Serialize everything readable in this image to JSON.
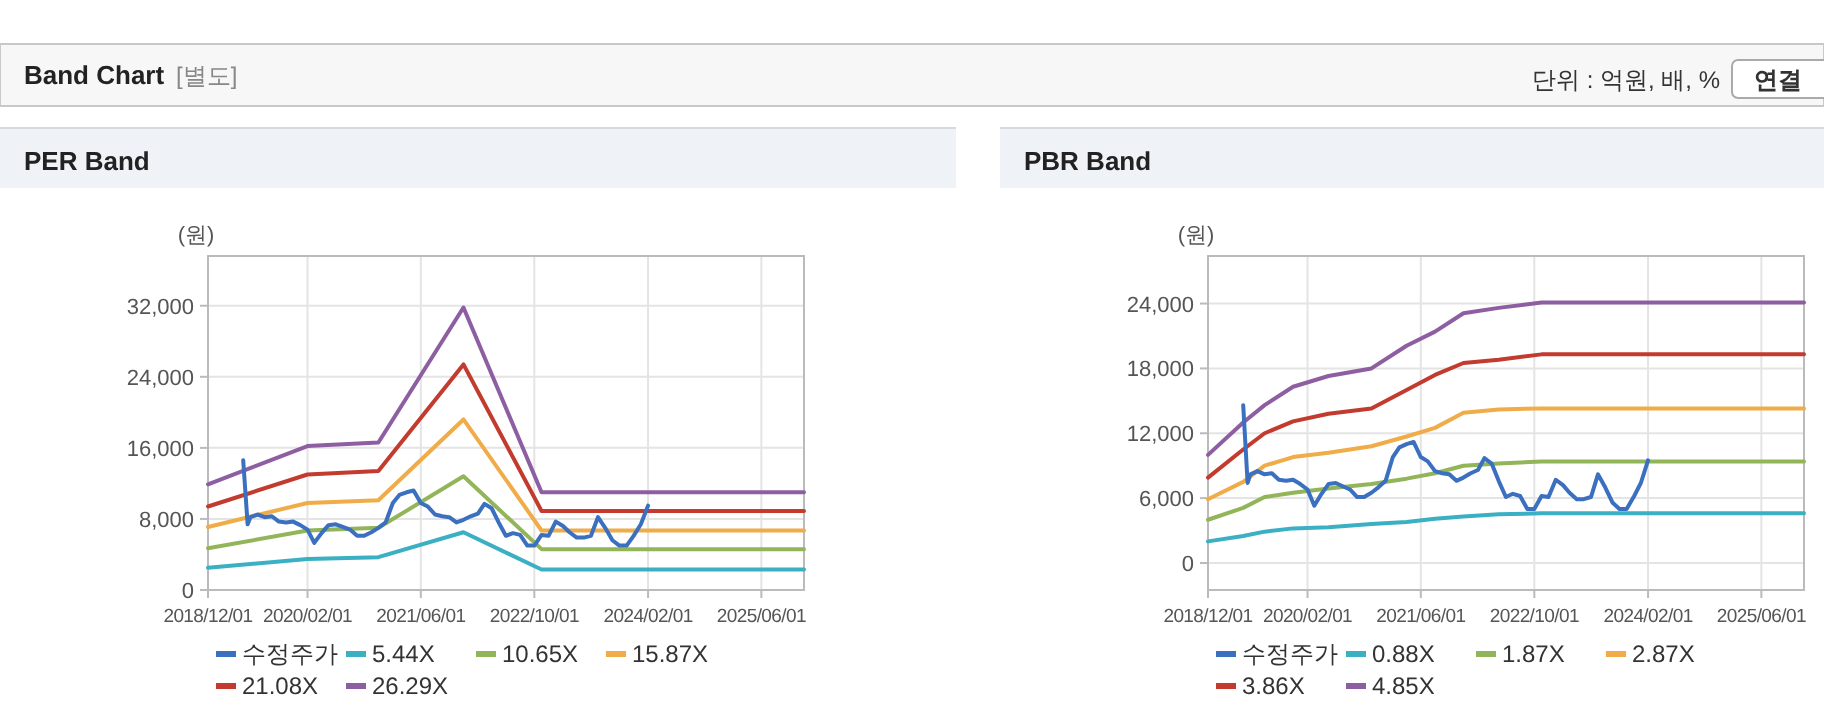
{
  "chart_data": [
    {
      "type": "other",
      "title": "Band Chart",
      "subtitle": "[별도]",
      "annotations": [
        "단위 : 억원, 배, %",
        "연결"
      ]
    },
    {
      "type": "line",
      "title": "PER Band",
      "ylabel": "(원)",
      "xlim": [
        "2018-12-01",
        "2025-12-01"
      ],
      "ylim": [
        0,
        37600
      ],
      "xticks": [
        {
          "value": "2018-12-01",
          "label": "2018/12/01"
        },
        {
          "value": "2020-02-01",
          "label": "2020/02/01"
        },
        {
          "value": "2021-06-01",
          "label": "2021/06/01"
        },
        {
          "value": "2022-10-01",
          "label": "2022/10/01"
        },
        {
          "value": "2024-02-01",
          "label": "2024/02/01"
        },
        {
          "value": "2025-06-01",
          "label": "2025/06/01"
        }
      ],
      "yticks": [
        0,
        {
          "value": 8000,
          "label": "8,000"
        },
        {
          "value": 16000,
          "label": "16,000"
        },
        {
          "value": 24000,
          "label": "24,000"
        },
        {
          "value": 32000,
          "label": "32,000"
        }
      ],
      "grid": true,
      "legend": "bottom",
      "series": [
        {
          "name": "수정주가",
          "color": "#3b6fc0",
          "x": [
            "2019-05",
            "2019-05-20",
            "2019-06",
            "2019-07",
            "2019-08",
            "2019-09",
            "2019-10",
            "2019-11",
            "2019-12",
            "2020-01",
            "2020-02",
            "2020-03",
            "2020-04",
            "2020-05",
            "2020-06",
            "2020-07",
            "2020-08",
            "2020-09",
            "2020-10",
            "2020-11",
            "2020-12",
            "2021-01",
            "2021-02",
            "2021-03",
            "2021-04",
            "2021-05",
            "2021-06",
            "2021-07",
            "2021-08",
            "2021-09",
            "2021-10",
            "2021-11",
            "2021-12",
            "2022-01",
            "2022-02",
            "2022-03",
            "2022-04",
            "2022-05",
            "2022-06",
            "2022-07",
            "2022-08",
            "2022-09",
            "2022-10",
            "2022-11",
            "2022-12",
            "2023-01",
            "2023-02",
            "2023-03",
            "2023-04",
            "2023-05",
            "2023-06",
            "2023-07",
            "2023-08",
            "2023-09",
            "2023-10",
            "2023-11",
            "2023-12",
            "2024-01",
            "2024-02"
          ],
          "values": [
            14600,
            7400,
            8200,
            8500,
            8200,
            8300,
            7700,
            7600,
            7700,
            7300,
            6800,
            5300,
            6400,
            7300,
            7400,
            7100,
            6800,
            6100,
            6100,
            6500,
            7000,
            7600,
            9800,
            10700,
            11000,
            11200,
            9800,
            9400,
            8500,
            8300,
            8200,
            7600,
            7900,
            8300,
            8600,
            9700,
            9200,
            7600,
            6100,
            6400,
            6200,
            5000,
            5000,
            6200,
            6100,
            7700,
            7200,
            6500,
            5900,
            5900,
            6100,
            8200,
            7000,
            5600,
            5000,
            5000,
            6100,
            7400,
            9500
          ]
        },
        {
          "name": "5.44X",
          "color": "#3bb0c2",
          "x": [
            "2018-12",
            "2020-02",
            "2020-12",
            "2021-12",
            "2022-11",
            "2025-12"
          ],
          "values": [
            2500,
            3500,
            3700,
            6500,
            2300,
            2300
          ]
        },
        {
          "name": "10.65X",
          "color": "#93b55a",
          "x": [
            "2018-12",
            "2020-02",
            "2020-12",
            "2021-12",
            "2022-11",
            "2025-12"
          ],
          "values": [
            4700,
            6700,
            7000,
            12800,
            4600,
            4600
          ]
        },
        {
          "name": "15.87X",
          "color": "#f0ac48",
          "x": [
            "2018-12",
            "2020-02",
            "2020-12",
            "2021-12",
            "2022-11",
            "2025-12"
          ],
          "values": [
            7100,
            9800,
            10100,
            19200,
            6700,
            6700
          ]
        },
        {
          "name": "21.08X",
          "color": "#c23b2e",
          "x": [
            "2018-12",
            "2020-02",
            "2020-12",
            "2021-12",
            "2022-11",
            "2025-12"
          ],
          "values": [
            9400,
            13000,
            13400,
            25400,
            8900,
            8900
          ]
        },
        {
          "name": "26.29X",
          "color": "#8e5ea2",
          "x": [
            "2018-12",
            "2020-02",
            "2020-12",
            "2021-12",
            "2022-11",
            "2025-12"
          ],
          "values": [
            11900,
            16200,
            16600,
            31800,
            11000,
            11000
          ]
        }
      ]
    },
    {
      "type": "line",
      "title": "PBR Band",
      "ylabel": "(원)",
      "xlim": [
        "2018-12-01",
        "2025-12-01"
      ],
      "ylim": [
        -2500,
        28400
      ],
      "xticks": [
        {
          "value": "2018-12-01",
          "label": "2018/12/01"
        },
        {
          "value": "2020-02-01",
          "label": "2020/02/01"
        },
        {
          "value": "2021-06-01",
          "label": "2021/06/01"
        },
        {
          "value": "2022-10-01",
          "label": "2022/10/01"
        },
        {
          "value": "2024-02-01",
          "label": "2024/02/01"
        },
        {
          "value": "2025-06-01",
          "label": "2025/06/01"
        }
      ],
      "yticks": [
        0,
        {
          "value": 6000,
          "label": "6,000"
        },
        {
          "value": 12000,
          "label": "12,000"
        },
        {
          "value": 18000,
          "label": "18,000"
        },
        {
          "value": 24000,
          "label": "24,000"
        }
      ],
      "grid": true,
      "legend": "bottom",
      "series": [
        {
          "name": "수정주가",
          "color": "#3b6fc0",
          "x": [
            "2019-05",
            "2019-05-20",
            "2019-06",
            "2019-07",
            "2019-08",
            "2019-09",
            "2019-10",
            "2019-11",
            "2019-12",
            "2020-01",
            "2020-02",
            "2020-03",
            "2020-04",
            "2020-05",
            "2020-06",
            "2020-07",
            "2020-08",
            "2020-09",
            "2020-10",
            "2020-11",
            "2020-12",
            "2021-01",
            "2021-02",
            "2021-03",
            "2021-04",
            "2021-05",
            "2021-06",
            "2021-07",
            "2021-08",
            "2021-09",
            "2021-10",
            "2021-11",
            "2021-12",
            "2022-01",
            "2022-02",
            "2022-03",
            "2022-04",
            "2022-05",
            "2022-06",
            "2022-07",
            "2022-08",
            "2022-09",
            "2022-10",
            "2022-11",
            "2022-12",
            "2023-01",
            "2023-02",
            "2023-03",
            "2023-04",
            "2023-05",
            "2023-06",
            "2023-07",
            "2023-08",
            "2023-09",
            "2023-10",
            "2023-11",
            "2023-12",
            "2024-01",
            "2024-02"
          ],
          "values": [
            14600,
            7400,
            8200,
            8500,
            8200,
            8300,
            7700,
            7600,
            7700,
            7300,
            6800,
            5300,
            6400,
            7300,
            7400,
            7100,
            6800,
            6100,
            6100,
            6500,
            7000,
            7600,
            9800,
            10700,
            11000,
            11200,
            9800,
            9400,
            8500,
            8300,
            8200,
            7600,
            7900,
            8300,
            8600,
            9700,
            9200,
            7600,
            6100,
            6400,
            6200,
            5000,
            5000,
            6200,
            6100,
            7700,
            7200,
            6500,
            5900,
            5900,
            6100,
            8200,
            7000,
            5600,
            5000,
            5000,
            6100,
            7400,
            9500
          ]
        },
        {
          "name": "0.88X",
          "color": "#3bb0c2",
          "x": [
            "2018-12",
            "2019-05",
            "2019-08",
            "2019-12",
            "2020-05",
            "2020-11",
            "2021-04",
            "2021-08",
            "2021-12",
            "2022-05",
            "2022-11",
            "2025-12"
          ],
          "values": [
            2000,
            2500,
            2900,
            3200,
            3300,
            3600,
            3800,
            4100,
            4300,
            4500,
            4600,
            4600
          ]
        },
        {
          "name": "1.87X",
          "color": "#93b55a",
          "x": [
            "2018-12",
            "2019-05",
            "2019-08",
            "2019-12",
            "2020-05",
            "2020-11",
            "2021-04",
            "2021-08",
            "2021-12",
            "2022-05",
            "2022-11",
            "2025-12"
          ],
          "values": [
            4000,
            5100,
            6100,
            6500,
            6900,
            7300,
            7800,
            8300,
            9000,
            9200,
            9400,
            9400
          ]
        },
        {
          "name": "2.87X",
          "color": "#f0ac48",
          "x": [
            "2018-12",
            "2019-05",
            "2019-08",
            "2019-12",
            "2020-05",
            "2020-11",
            "2021-04",
            "2021-08",
            "2021-12",
            "2022-05",
            "2022-11",
            "2025-12"
          ],
          "values": [
            5900,
            7500,
            9000,
            9800,
            10200,
            10800,
            11700,
            12500,
            13900,
            14200,
            14300,
            14300
          ]
        },
        {
          "name": "3.86X",
          "color": "#c23b2e",
          "x": [
            "2018-12",
            "2019-05",
            "2019-08",
            "2019-12",
            "2020-05",
            "2020-11",
            "2021-04",
            "2021-08",
            "2021-12",
            "2022-05",
            "2022-11",
            "2025-12"
          ],
          "values": [
            7900,
            10500,
            12000,
            13100,
            13800,
            14300,
            16000,
            17400,
            18500,
            18800,
            19300,
            19300
          ]
        },
        {
          "name": "4.85X",
          "color": "#8e5ea2",
          "x": [
            "2018-12",
            "2019-05",
            "2019-08",
            "2019-12",
            "2020-05",
            "2020-11",
            "2021-04",
            "2021-08",
            "2021-12",
            "2022-05",
            "2022-11",
            "2025-12"
          ],
          "values": [
            10000,
            13000,
            14600,
            16300,
            17300,
            18000,
            20100,
            21400,
            23100,
            23600,
            24100,
            24100
          ]
        }
      ]
    }
  ]
}
